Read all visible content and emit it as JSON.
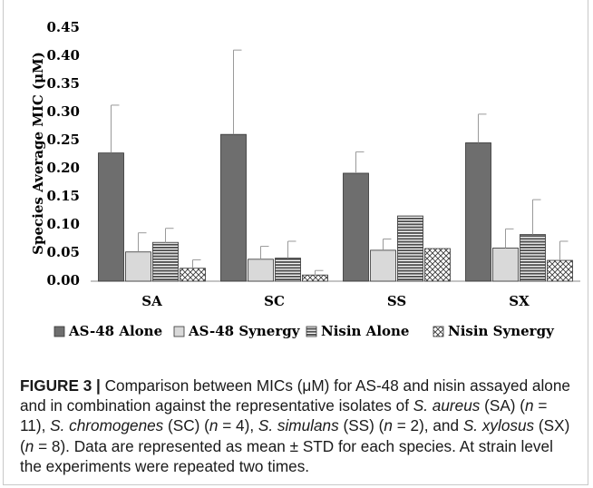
{
  "chart_data": {
    "type": "bar",
    "ylabel": "Species Average MIC (μM)",
    "ylim": [
      0,
      0.45
    ],
    "yticks": [
      "0.00",
      "0.05",
      "0.10",
      "0.15",
      "0.20",
      "0.25",
      "0.30",
      "0.35",
      "0.40",
      "0.45"
    ],
    "categories": [
      "SA",
      "SC",
      "SS",
      "SX"
    ],
    "legend_position": "bottom",
    "series": [
      {
        "name": "AS-48 Alone",
        "pattern": "solid-dark",
        "color": "#6e6e6e",
        "values": [
          0.228,
          0.261,
          0.192,
          0.246
        ],
        "errors": [
          0.085,
          0.15,
          0.038,
          0.051
        ]
      },
      {
        "name": "AS-48 Synergy",
        "pattern": "solid-light",
        "color": "#d9d9d9",
        "values": [
          0.052,
          0.039,
          0.055,
          0.059
        ],
        "errors": [
          0.034,
          0.023,
          0.02,
          0.034
        ]
      },
      {
        "name": "Nisin Alone",
        "pattern": "horizontal-lines",
        "color": "#5a5a5a",
        "values": [
          0.069,
          0.041,
          0.116,
          0.083
        ],
        "errors": [
          0.025,
          0.03,
          0.0,
          0.062
        ]
      },
      {
        "name": "Nisin Synergy",
        "pattern": "crosshatch",
        "color": "#404040",
        "values": [
          0.023,
          0.011,
          0.058,
          0.037
        ],
        "errors": [
          0.015,
          0.008,
          0.0,
          0.034
        ]
      }
    ]
  },
  "caption": {
    "label": "FIGURE 3",
    "separator": " | ",
    "parts": [
      {
        "t": "Comparison between MICs (μM) for AS-48 and nisin assayed alone and in combination against the representative isolates of ",
        "i": false
      },
      {
        "t": "S. aureus",
        "i": true
      },
      {
        "t": " (SA) (",
        "i": false
      },
      {
        "t": "n",
        "i": true
      },
      {
        "t": " = 11), ",
        "i": false
      },
      {
        "t": "S. chromogenes",
        "i": true
      },
      {
        "t": " (SC) (",
        "i": false
      },
      {
        "t": "n",
        "i": true
      },
      {
        "t": " = 4), ",
        "i": false
      },
      {
        "t": "S. simulans",
        "i": true
      },
      {
        "t": " (SS) (",
        "i": false
      },
      {
        "t": "n",
        "i": true
      },
      {
        "t": " = 2), and ",
        "i": false
      },
      {
        "t": "S. xylosus",
        "i": true
      },
      {
        "t": " (SX) (",
        "i": false
      },
      {
        "t": "n",
        "i": true
      },
      {
        "t": " = 8). Data are represented as mean ± STD for each species. At strain level the experiments were repeated two times.",
        "i": false
      }
    ]
  }
}
